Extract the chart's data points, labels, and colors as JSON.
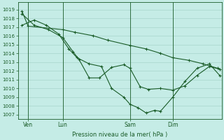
{
  "background_color": "#c5ece6",
  "grid_color": "#a8d5cc",
  "line_color": "#1a5c28",
  "marker_color": "#1a5c28",
  "title": "Pression niveau de la mer( hPa )",
  "yticks": [
    1007,
    1008,
    1009,
    1010,
    1011,
    1012,
    1013,
    1014,
    1015,
    1016,
    1017,
    1018,
    1019
  ],
  "ylim": [
    1006.5,
    1019.8
  ],
  "xlim": [
    0,
    100
  ],
  "xtick_labels": [
    "Ven",
    "Lun",
    "Sam",
    "Dim"
  ],
  "xtick_positions": [
    5,
    22,
    55,
    76
  ],
  "vline_positions": [
    5,
    22,
    55,
    76
  ],
  "series1_x": [
    2,
    5,
    22,
    28,
    37,
    44,
    55,
    63,
    70,
    76,
    84,
    91,
    98
  ],
  "series1_y": [
    1018.8,
    1017.1,
    1016.7,
    1016.4,
    1016.0,
    1015.5,
    1014.9,
    1014.5,
    1014.0,
    1013.5,
    1013.2,
    1012.8,
    1012.3
  ],
  "series2_x": [
    2,
    8,
    15,
    22,
    27,
    30,
    35,
    40,
    46,
    52,
    55,
    60,
    64,
    70,
    76,
    82,
    88,
    94,
    99
  ],
  "series2_y": [
    1018.5,
    1017.2,
    1016.7,
    1015.8,
    1014.2,
    1013.3,
    1011.2,
    1011.2,
    1012.4,
    1012.7,
    1012.3,
    1010.2,
    1009.9,
    1010.0,
    1009.8,
    1010.3,
    1011.5,
    1012.5,
    1012.2
  ],
  "series3_x": [
    2,
    8,
    14,
    20,
    25,
    29,
    35,
    41,
    46,
    52,
    55,
    59,
    63,
    67,
    70,
    76,
    82,
    88,
    94,
    99
  ],
  "series3_y": [
    1017.2,
    1017.8,
    1017.2,
    1016.2,
    1014.5,
    1013.5,
    1012.8,
    1012.5,
    1010.0,
    1009.0,
    1008.2,
    1007.8,
    1007.2,
    1007.5,
    1007.4,
    1009.0,
    1010.8,
    1012.3,
    1012.8,
    1011.5
  ]
}
